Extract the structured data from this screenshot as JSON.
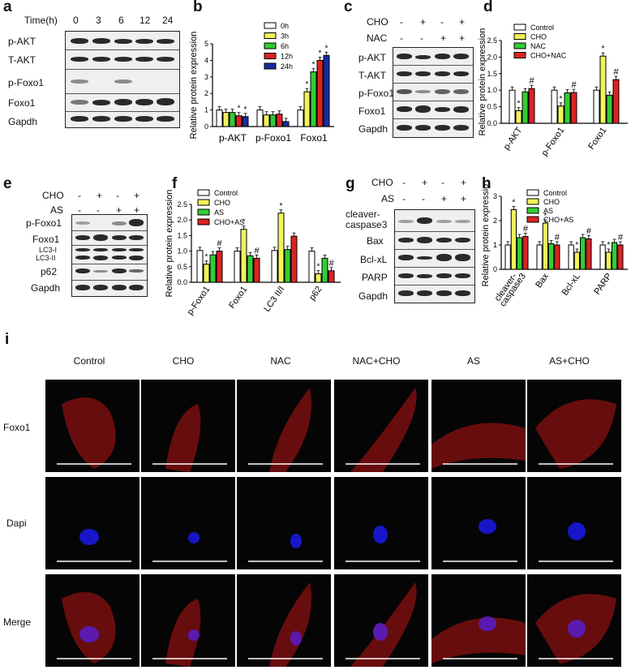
{
  "panel_letters": {
    "a": "a",
    "b": "b",
    "c": "c",
    "d": "d",
    "e": "e",
    "f": "f",
    "g": "g",
    "h": "h",
    "i": "i"
  },
  "panel_a": {
    "time_label": "Time(h)",
    "times": [
      "0",
      "3",
      "6",
      "12",
      "24"
    ],
    "rows": [
      "p-AKT",
      "T-AKT",
      "p-Foxo1",
      "Foxo1",
      "Gapdh"
    ]
  },
  "panel_c": {
    "cho_label": "CHO",
    "nac_label": "NAC",
    "cho_signs": [
      "-",
      "+",
      "-",
      "+"
    ],
    "nac_signs": [
      "-",
      "-",
      "+",
      "+"
    ],
    "rows": [
      "p-AKT",
      "T-AKT",
      "p-Foxo1",
      "Foxo1",
      "Gapdh"
    ]
  },
  "panel_e": {
    "cho_label": "CHO",
    "as_label": "AS",
    "cho_signs": [
      "-",
      "+",
      "-",
      "+"
    ],
    "as_signs": [
      "-",
      "-",
      "+",
      "+"
    ],
    "rows": [
      "p-Foxo1",
      "Foxo1",
      "LC3-I",
      "LC3-II",
      "p62",
      "Gapdh"
    ]
  },
  "panel_g": {
    "cho_label": "CHO",
    "as_label": "AS",
    "cho_signs": [
      "-",
      "+",
      "-",
      "+"
    ],
    "as_signs": [
      "-",
      "-",
      "+",
      "+"
    ],
    "rows": [
      "cleaver-\ncaspase3",
      "Bax",
      "Bcl-xL",
      "PARP",
      "Gapdh"
    ]
  },
  "chart_data": [
    {
      "panel": "b",
      "type": "bar",
      "ylabel": "Relative protein expression",
      "ylim": [
        0,
        5
      ],
      "yticks": [
        "0",
        "1",
        "2",
        "3",
        "4",
        "5"
      ],
      "categories": [
        "p-AKT",
        "p-Foxo1",
        "Foxo1"
      ],
      "series": [
        {
          "name": "0h",
          "color": "#ffffff",
          "values": [
            1.0,
            1.0,
            1.0
          ]
        },
        {
          "name": "3h",
          "color": "#f2f25a",
          "values": [
            0.85,
            0.7,
            2.1
          ]
        },
        {
          "name": "6h",
          "color": "#33cc33",
          "values": [
            0.85,
            0.7,
            3.3
          ]
        },
        {
          "name": "12h",
          "color": "#dd2222",
          "values": [
            0.65,
            0.75,
            4.0
          ]
        },
        {
          "name": "24h",
          "color": "#1a2aa0",
          "values": [
            0.6,
            0.3,
            4.3
          ]
        }
      ],
      "marks": [
        [
          "",
          "*",
          "*"
        ],
        [
          "",
          "",
          ""
        ],
        [
          "",
          "",
          "*"
        ]
      ],
      "star_positions": [
        [
          0,
          3
        ],
        [
          0,
          4
        ],
        [
          2,
          1
        ],
        [
          2,
          2
        ],
        [
          2,
          3
        ],
        [
          2,
          4
        ]
      ]
    },
    {
      "panel": "d",
      "type": "bar",
      "ylabel": "Relative protein expression",
      "ylim": [
        0,
        2.5
      ],
      "yticks": [
        "0.0",
        "0.5",
        "1.0",
        "1.5",
        "2.0",
        "2.5"
      ],
      "categories": [
        "p-AKT",
        "p-Foxo1",
        "Foxo1"
      ],
      "series": [
        {
          "name": "Control",
          "color": "#ffffff",
          "values": [
            1.0,
            1.0,
            1.0
          ]
        },
        {
          "name": "CHO",
          "color": "#f2f25a",
          "values": [
            0.38,
            0.52,
            2.03
          ]
        },
        {
          "name": "NAC",
          "color": "#33cc33",
          "values": [
            0.95,
            0.92,
            0.85
          ]
        },
        {
          "name": "CHO+NAC",
          "color": "#dd2222",
          "values": [
            1.05,
            0.93,
            1.32
          ]
        }
      ],
      "stars": [
        [
          0,
          1
        ],
        [
          1,
          1
        ],
        [
          2,
          1
        ]
      ],
      "hashes": [
        [
          0,
          3
        ],
        [
          1,
          3
        ],
        [
          2,
          3
        ]
      ]
    },
    {
      "panel": "f",
      "type": "bar",
      "ylabel": "Relative protein expression",
      "ylim": [
        0,
        2.5
      ],
      "yticks": [
        "0.0",
        "0.5",
        "1.0",
        "1.5",
        "2.0",
        "2.5"
      ],
      "categories": [
        "p-Foxo1",
        "Foxo1",
        "LC3 II/I",
        "p62"
      ],
      "series": [
        {
          "name": "Control",
          "color": "#ffffff",
          "values": [
            1.02,
            1.0,
            1.02,
            1.0
          ]
        },
        {
          "name": "CHO",
          "color": "#f2f25a",
          "values": [
            0.58,
            1.7,
            2.22,
            0.27
          ]
        },
        {
          "name": "AS",
          "color": "#33cc33",
          "values": [
            0.88,
            0.85,
            1.05,
            0.77
          ]
        },
        {
          "name": "CHO+AS",
          "color": "#dd2222",
          "values": [
            1.0,
            0.77,
            1.48,
            0.37
          ]
        }
      ],
      "stars": [
        [
          0,
          1
        ],
        [
          1,
          1
        ],
        [
          2,
          1
        ],
        [
          3,
          1
        ]
      ],
      "hashes": [
        [
          0,
          3
        ],
        [
          1,
          3
        ],
        [
          3,
          3
        ]
      ]
    },
    {
      "panel": "h",
      "type": "bar",
      "ylabel": "Relative protein expression",
      "ylim": [
        0,
        3
      ],
      "yticks": [
        "0",
        "1",
        "2",
        "3"
      ],
      "categories": [
        "cleaver-\ncaspase3",
        "Bax",
        "Bcl-xL",
        "PARP"
      ],
      "series": [
        {
          "name": "Control",
          "color": "#ffffff",
          "values": [
            1.0,
            1.0,
            1.0,
            1.0
          ]
        },
        {
          "name": "CHO",
          "color": "#f2f25a",
          "values": [
            2.45,
            1.9,
            0.7,
            0.7
          ]
        },
        {
          "name": "AS",
          "color": "#33cc33",
          "values": [
            1.3,
            1.05,
            1.3,
            1.1
          ]
        },
        {
          "name": "CHO+AS",
          "color": "#dd2222",
          "values": [
            1.35,
            1.0,
            1.25,
            1.0
          ]
        }
      ],
      "stars": [
        [
          0,
          1
        ],
        [
          1,
          1
        ],
        [
          2,
          1
        ],
        [
          3,
          1
        ]
      ],
      "hashes": [
        [
          0,
          3
        ],
        [
          1,
          3
        ],
        [
          2,
          3
        ],
        [
          3,
          3
        ]
      ]
    }
  ],
  "panel_i": {
    "columns": [
      "Control",
      "CHO",
      "NAC",
      "NAC+CHO",
      "AS",
      "AS+CHO"
    ],
    "rows": [
      "Foxo1",
      "Dapi",
      "Merge"
    ]
  },
  "symbols": {
    "star": "*",
    "hash": "#"
  }
}
